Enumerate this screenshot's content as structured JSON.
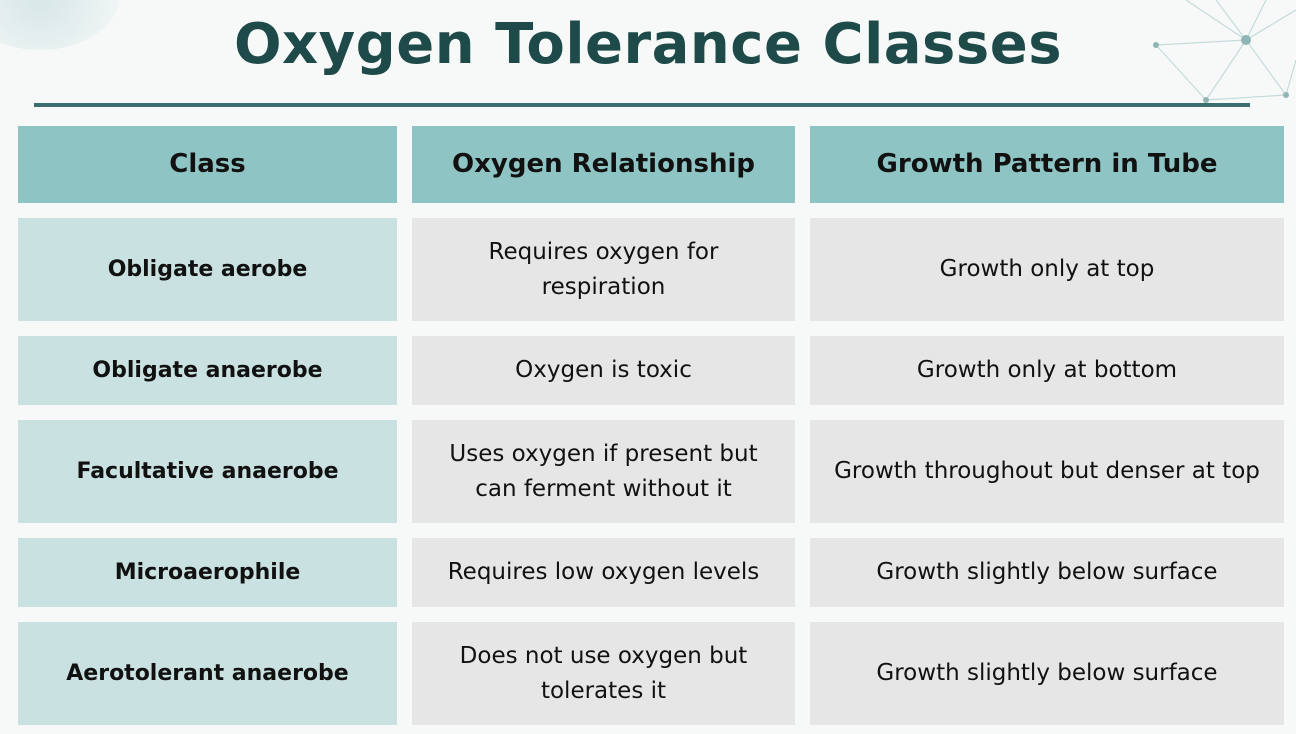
{
  "title": "Oxygen Tolerance Classes",
  "table": {
    "headers": [
      "Class",
      "Oxygen Relationship",
      "Growth Pattern in Tube"
    ],
    "rows": [
      [
        "Obligate aerobe",
        "Requires oxygen for respiration",
        "Growth only at top"
      ],
      [
        "Obligate anaerobe",
        "Oxygen is toxic",
        "Growth only at bottom"
      ],
      [
        "Facultative anaerobe",
        "Uses oxygen if present but can ferment without it",
        "Growth throughout but denser at top"
      ],
      [
        "Microaerophile",
        "Requires low oxygen levels",
        "Growth slightly below surface"
      ],
      [
        "Aerotolerant anaerobe",
        "Does not use oxygen but tolerates it",
        "Growth slightly below surface"
      ]
    ]
  },
  "colors": {
    "title": "#1f4a4a",
    "rule": "#3b6e6e",
    "header_bg": "#8fc4c4",
    "class_bg": "#c9e1e1",
    "value_bg": "#e6e6e6"
  }
}
